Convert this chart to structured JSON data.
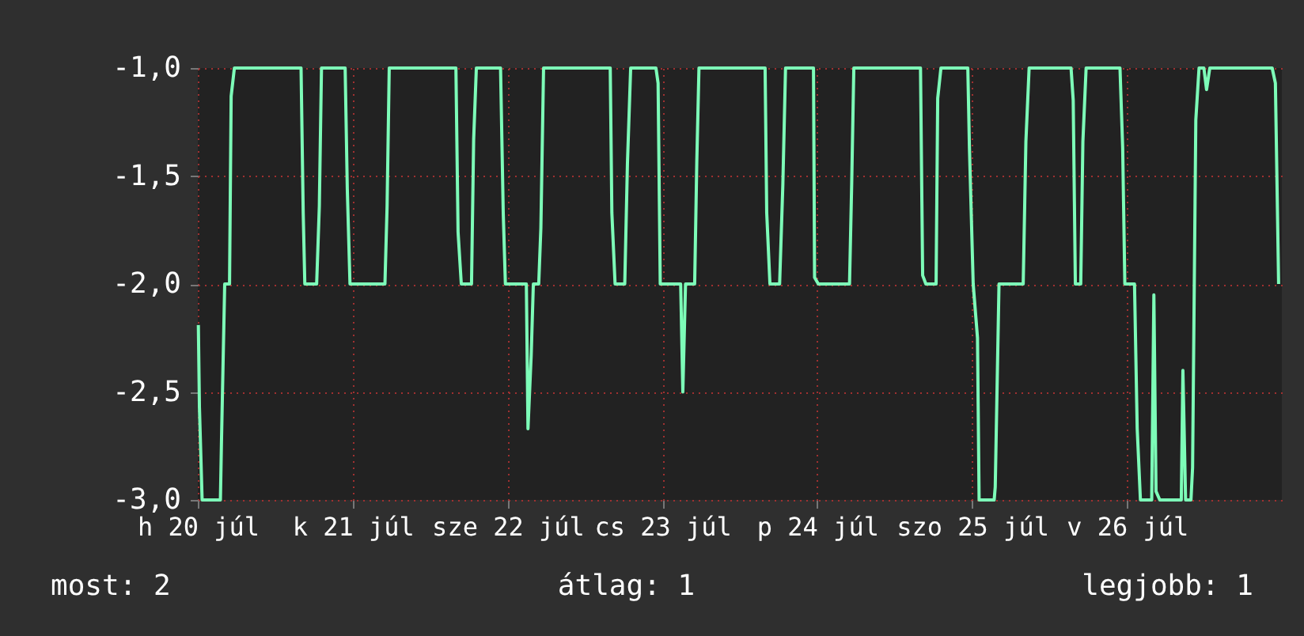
{
  "chart_data": {
    "type": "line",
    "x": [
      "--07-20T00:05",
      "--07-20T00:15",
      "--07-20T00:40",
      "--07-20T03:30",
      "--07-20T03:40",
      "--07-20T04:10",
      "--07-20T04:55",
      "--07-20T05:10",
      "--07-20T05:40",
      "--07-20T16:00",
      "--07-20T16:20",
      "--07-20T16:35",
      "--07-20T18:25",
      "--07-20T18:50",
      "--07-20T19:10",
      "--07-20T22:50",
      "--07-20T23:10",
      "--07-20T23:35",
      "--07-21T05:00",
      "--07-21T05:20",
      "--07-21T05:40",
      "--07-21T16:00",
      "--07-21T16:20",
      "--07-21T16:50",
      "--07-21T18:25",
      "--07-21T18:45",
      "--07-21T19:10",
      "--07-21T22:55",
      "--07-21T23:20",
      "--07-21T23:40",
      "--07-22T02:55",
      "--07-22T03:10",
      "--07-22T03:40",
      "--07-22T04:00",
      "--07-22T04:50",
      "--07-22T05:10",
      "--07-22T05:35",
      "--07-22T15:55",
      "--07-22T16:10",
      "--07-22T16:40",
      "--07-22T18:10",
      "--07-22T18:35",
      "--07-22T19:05",
      "--07-22T23:00",
      "--07-22T23:20",
      "--07-22T23:40",
      "--07-23T02:50",
      "--07-23T03:10",
      "--07-23T03:35",
      "--07-23T05:00",
      "--07-23T05:20",
      "--07-23T05:40",
      "--07-23T15:55",
      "--07-23T16:10",
      "--07-23T16:40",
      "--07-23T18:10",
      "--07-23T18:40",
      "--07-23T19:05",
      "--07-23T23:25",
      "--07-23T23:35",
      "--07-24T00:10",
      "--07-24T05:00",
      "--07-24T05:20",
      "--07-24T05:40",
      "--07-24T16:00",
      "--07-24T16:20",
      "--07-24T16:50",
      "--07-24T18:25",
      "--07-24T18:40",
      "--07-24T19:10",
      "--07-24T23:20",
      "--07-24T23:35",
      "--07-25T00:10",
      "--07-25T00:50",
      "--07-25T01:05",
      "--07-25T03:25",
      "--07-25T03:35",
      "--07-25T04:10",
      "--07-25T07:55",
      "--07-25T08:20",
      "--07-25T08:50",
      "--07-25T15:20",
      "--07-25T15:40",
      "--07-25T16:00",
      "--07-25T16:50",
      "--07-25T17:10",
      "--07-25T17:40",
      "--07-25T22:55",
      "--07-25T23:20",
      "--07-25T23:40",
      "--07-26T01:10",
      "--07-26T01:35",
      "--07-26T02:05",
      "--07-26T03:50",
      "--07-26T04:10",
      "--07-26T04:30",
      "--07-26T05:05",
      "--07-26T08:25",
      "--07-26T08:40",
      "--07-26T09:05",
      "--07-26T09:55",
      "--07-26T10:10",
      "--07-26T10:40",
      "--07-26T11:10",
      "--07-26T11:55",
      "--07-26T12:20",
      "--07-26T12:50",
      "--07-26T22:30",
      "--07-26T23:00",
      "--07-26T23:30"
    ],
    "series": [
      {
        "color": "#7dfcb8",
        "values": [
          -2.19,
          -2.57,
          -3,
          -3,
          -2.73,
          -2,
          -2,
          -1.13,
          -1,
          -1,
          -1.67,
          -2,
          -2,
          -1.64,
          -1,
          -1,
          -1.56,
          -2,
          -2,
          -1.64,
          -1,
          -1,
          -1.76,
          -2,
          -2,
          -1.33,
          -1,
          -1,
          -1.67,
          -2,
          -2,
          -2.67,
          -2.33,
          -2,
          -2,
          -1.74,
          -1,
          -1,
          -1.67,
          -2,
          -2,
          -1.44,
          -1,
          -1,
          -1.07,
          -2,
          -2,
          -2.5,
          -2,
          -2,
          -1.43,
          -1,
          -1,
          -1.67,
          -2,
          -2,
          -1.54,
          -1,
          -1,
          -1.97,
          -2,
          -2,
          -1.54,
          -1,
          -1,
          -1.96,
          -2,
          -2,
          -1.14,
          -1,
          -1,
          -1.37,
          -2,
          -2.25,
          -3,
          -3,
          -2.94,
          -2,
          -2,
          -1.34,
          -1,
          -1,
          -1.15,
          -2,
          -2,
          -1.34,
          -1,
          -1,
          -1.37,
          -2,
          -2,
          -2.67,
          -3,
          -3,
          -2.05,
          -2.96,
          -3,
          -3,
          -2.4,
          -3,
          -3,
          -2.85,
          -1.24,
          -1,
          -1,
          -1.1,
          -1,
          -1,
          -1.07,
          -2
        ]
      }
    ],
    "xlim": [
      "--07-20T00:00",
      "--07-27T00:00"
    ],
    "xticks": [
      {
        "value": "--07-20",
        "label": "h 20 júl"
      },
      {
        "value": "--07-21",
        "label": "k 21 júl"
      },
      {
        "value": "--07-22",
        "label": "sze 22 júl"
      },
      {
        "value": "--07-23",
        "label": "cs 23 júl"
      },
      {
        "value": "--07-24",
        "label": "p 24 júl"
      },
      {
        "value": "--07-25",
        "label": "szo 25 júl"
      },
      {
        "value": "--07-26",
        "label": "v 26 júl"
      }
    ],
    "ylim": [
      -3,
      -1
    ],
    "yticks": [
      {
        "value": -3,
        "label": "-3,0"
      },
      {
        "value": -2.5,
        "label": "-2,5"
      },
      {
        "value": -2,
        "label": "-2,0"
      },
      {
        "value": -1.5,
        "label": "-1,5"
      },
      {
        "value": -1,
        "label": "-1,0"
      }
    ],
    "grid": true,
    "annotations": [
      "most: 2",
      "átlag: 1",
      "legjobb: 1"
    ]
  }
}
